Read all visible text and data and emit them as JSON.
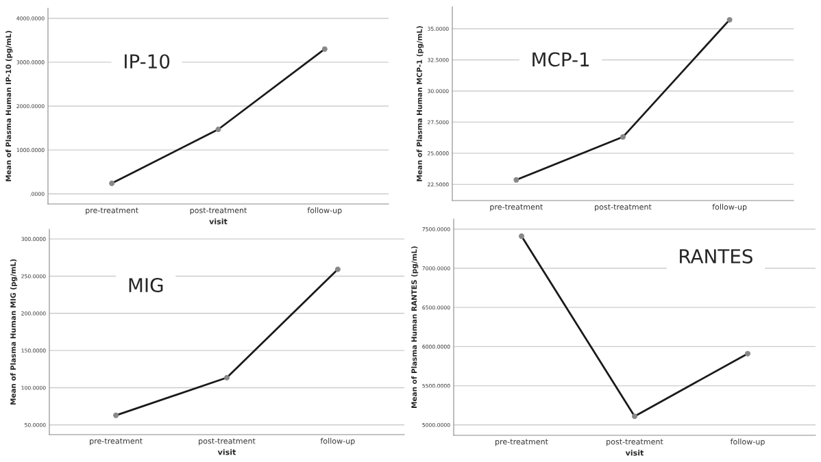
{
  "chart_data": [
    {
      "type": "line",
      "categories": [
        "pre-treatment",
        "post-treatment",
        "follow-up"
      ],
      "xlabel": "visit",
      "ylabel": "Mean of Plasma Human IP-10 (pg/mL)",
      "annotations": [
        "IP-10"
      ],
      "series": [
        {
          "color": "#1a1a1a",
          "values": [
            240,
            1470,
            3300
          ]
        }
      ],
      "ylim": [
        -230,
        4230
      ],
      "yticks": [
        {
          "value": 0,
          "label": ".0000"
        },
        {
          "value": 1000,
          "label": "1000.0000"
        },
        {
          "value": 2000,
          "label": "2000.0000"
        },
        {
          "value": 3000,
          "label": "3000.0000"
        },
        {
          "value": 4000,
          "label": "4000.0000"
        }
      ],
      "grid": "y",
      "marker": "circle",
      "line_style": "solid"
    },
    {
      "type": "line",
      "categories": [
        "pre-treatment",
        "post-treatment",
        "follow-up"
      ],
      "ylabel": "Mean of Plasma Human MCP-1 (pg/mL)",
      "annotations": [
        "MCP-1"
      ],
      "series": [
        {
          "color": "#1a1a1a",
          "values": [
            22.86,
            26.31,
            35.72
          ]
        }
      ],
      "ylim": [
        21.2,
        36.76
      ],
      "yticks": [
        {
          "value": 22.5,
          "label": "22.5000"
        },
        {
          "value": 25,
          "label": "25.0000"
        },
        {
          "value": 27.5,
          "label": "27.5000"
        },
        {
          "value": 30,
          "label": "30.0000"
        },
        {
          "value": 32.5,
          "label": "32.5000"
        },
        {
          "value": 35,
          "label": "35.0000"
        }
      ],
      "grid": "y",
      "marker": "circle",
      "line_style": "solid"
    },
    {
      "type": "line",
      "categories": [
        "pre-treatment",
        "post-treatment",
        "follow-up"
      ],
      "xlabel": "visit",
      "ylabel": "Mean of Plasma Human MIG (pg/mL)",
      "annotations": [
        "MIG"
      ],
      "series": [
        {
          "color": "#1a1a1a",
          "values": [
            62.8,
            113.5,
            259.2
          ]
        }
      ],
      "ylim": [
        36.9,
        313
      ],
      "yticks": [
        {
          "value": 50,
          "label": "50.0000"
        },
        {
          "value": 100,
          "label": "100.0000"
        },
        {
          "value": 150,
          "label": "150.0000"
        },
        {
          "value": 200,
          "label": "200.0000"
        },
        {
          "value": 250,
          "label": "250.0000"
        },
        {
          "value": 300,
          "label": "300.0000"
        }
      ],
      "grid": "y",
      "marker": "circle",
      "line_style": "solid"
    },
    {
      "type": "line",
      "categories": [
        "pre-treatment",
        "post-treatment",
        "follow-up"
      ],
      "xlabel": "visit",
      "ylabel": "Mean of Plasma Human RANTES (pg/mL)",
      "annotations": [
        "RANTES"
      ],
      "series": [
        {
          "color": "#1a1a1a",
          "values": [
            7410,
            5110,
            5910
          ]
        }
      ],
      "ylim": [
        4867,
        7629
      ],
      "yticks": [
        {
          "value": 5000,
          "label": "5000.0000"
        },
        {
          "value": 5500,
          "label": "5500.0000"
        },
        {
          "value": 6000,
          "label": "6000.0000"
        },
        {
          "value": 6500,
          "label": "6500.0000"
        },
        {
          "value": 7000,
          "label": "7000.0000"
        },
        {
          "value": 7500,
          "label": "7500.0000"
        }
      ],
      "grid": "y",
      "marker": "circle",
      "line_style": "solid"
    }
  ]
}
